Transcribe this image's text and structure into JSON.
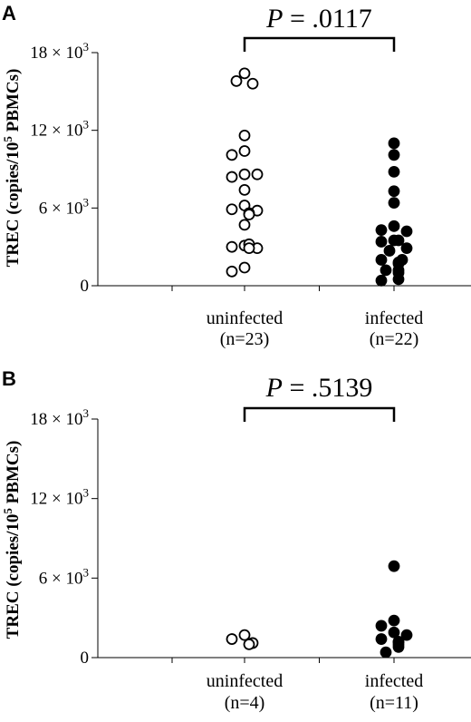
{
  "chart_data": [
    {
      "panel": "A",
      "type": "scatter",
      "ylabel": "TREC (copies/10",
      "ylabel_sup": "5",
      "ylabel_end": " PBMCs)",
      "ylim": [
        0,
        18000
      ],
      "yticks": [
        {
          "value": 0,
          "label": "0",
          "sup": ""
        },
        {
          "value": 6000,
          "label": "6 × 10",
          "sup": "3"
        },
        {
          "value": 12000,
          "label": "12 × 10",
          "sup": "3"
        },
        {
          "value": 18000,
          "label": "18 × 10",
          "sup": "3"
        }
      ],
      "p_label": "P",
      "p_value": " = .0117",
      "groups": [
        {
          "name": "uninfected",
          "n_label": "(n=23)",
          "filled": false,
          "values": [
            16400,
            15800,
            15600,
            11600,
            10400,
            10100,
            8600,
            8400,
            8600,
            7400,
            6200,
            5900,
            5800,
            5600,
            5500,
            4700,
            3100,
            3000,
            2900,
            3200,
            2900,
            1400,
            1100
          ]
        },
        {
          "name": "infected",
          "n_label": "(n=22)",
          "filled": true,
          "values": [
            11000,
            10100,
            8800,
            7300,
            6400,
            4600,
            4300,
            4200,
            3500,
            3400,
            3500,
            2900,
            2700,
            2000,
            2000,
            1800,
            1700,
            1200,
            1200,
            1000,
            500,
            400
          ]
        }
      ]
    },
    {
      "panel": "B",
      "type": "scatter",
      "ylabel": "TREC (copies/10",
      "ylabel_sup": "5",
      "ylabel_end": " PBMCs)",
      "ylim": [
        0,
        18000
      ],
      "yticks": [
        {
          "value": 0,
          "label": "0",
          "sup": ""
        },
        {
          "value": 6000,
          "label": "6 × 10",
          "sup": "3"
        },
        {
          "value": 12000,
          "label": "12 × 10",
          "sup": "3"
        },
        {
          "value": 18000,
          "label": "18 × 10",
          "sup": "3"
        }
      ],
      "p_label": "P",
      "p_value": " = .5139",
      "groups": [
        {
          "name": "uninfected",
          "n_label": "(n=4)",
          "filled": false,
          "values": [
            1700,
            1400,
            1100,
            1000
          ]
        },
        {
          "name": "infected",
          "n_label": "(n=11)",
          "filled": true,
          "values": [
            6900,
            2800,
            2400,
            1900,
            1700,
            1400,
            1200,
            1200,
            1000,
            800,
            400
          ]
        }
      ]
    }
  ]
}
